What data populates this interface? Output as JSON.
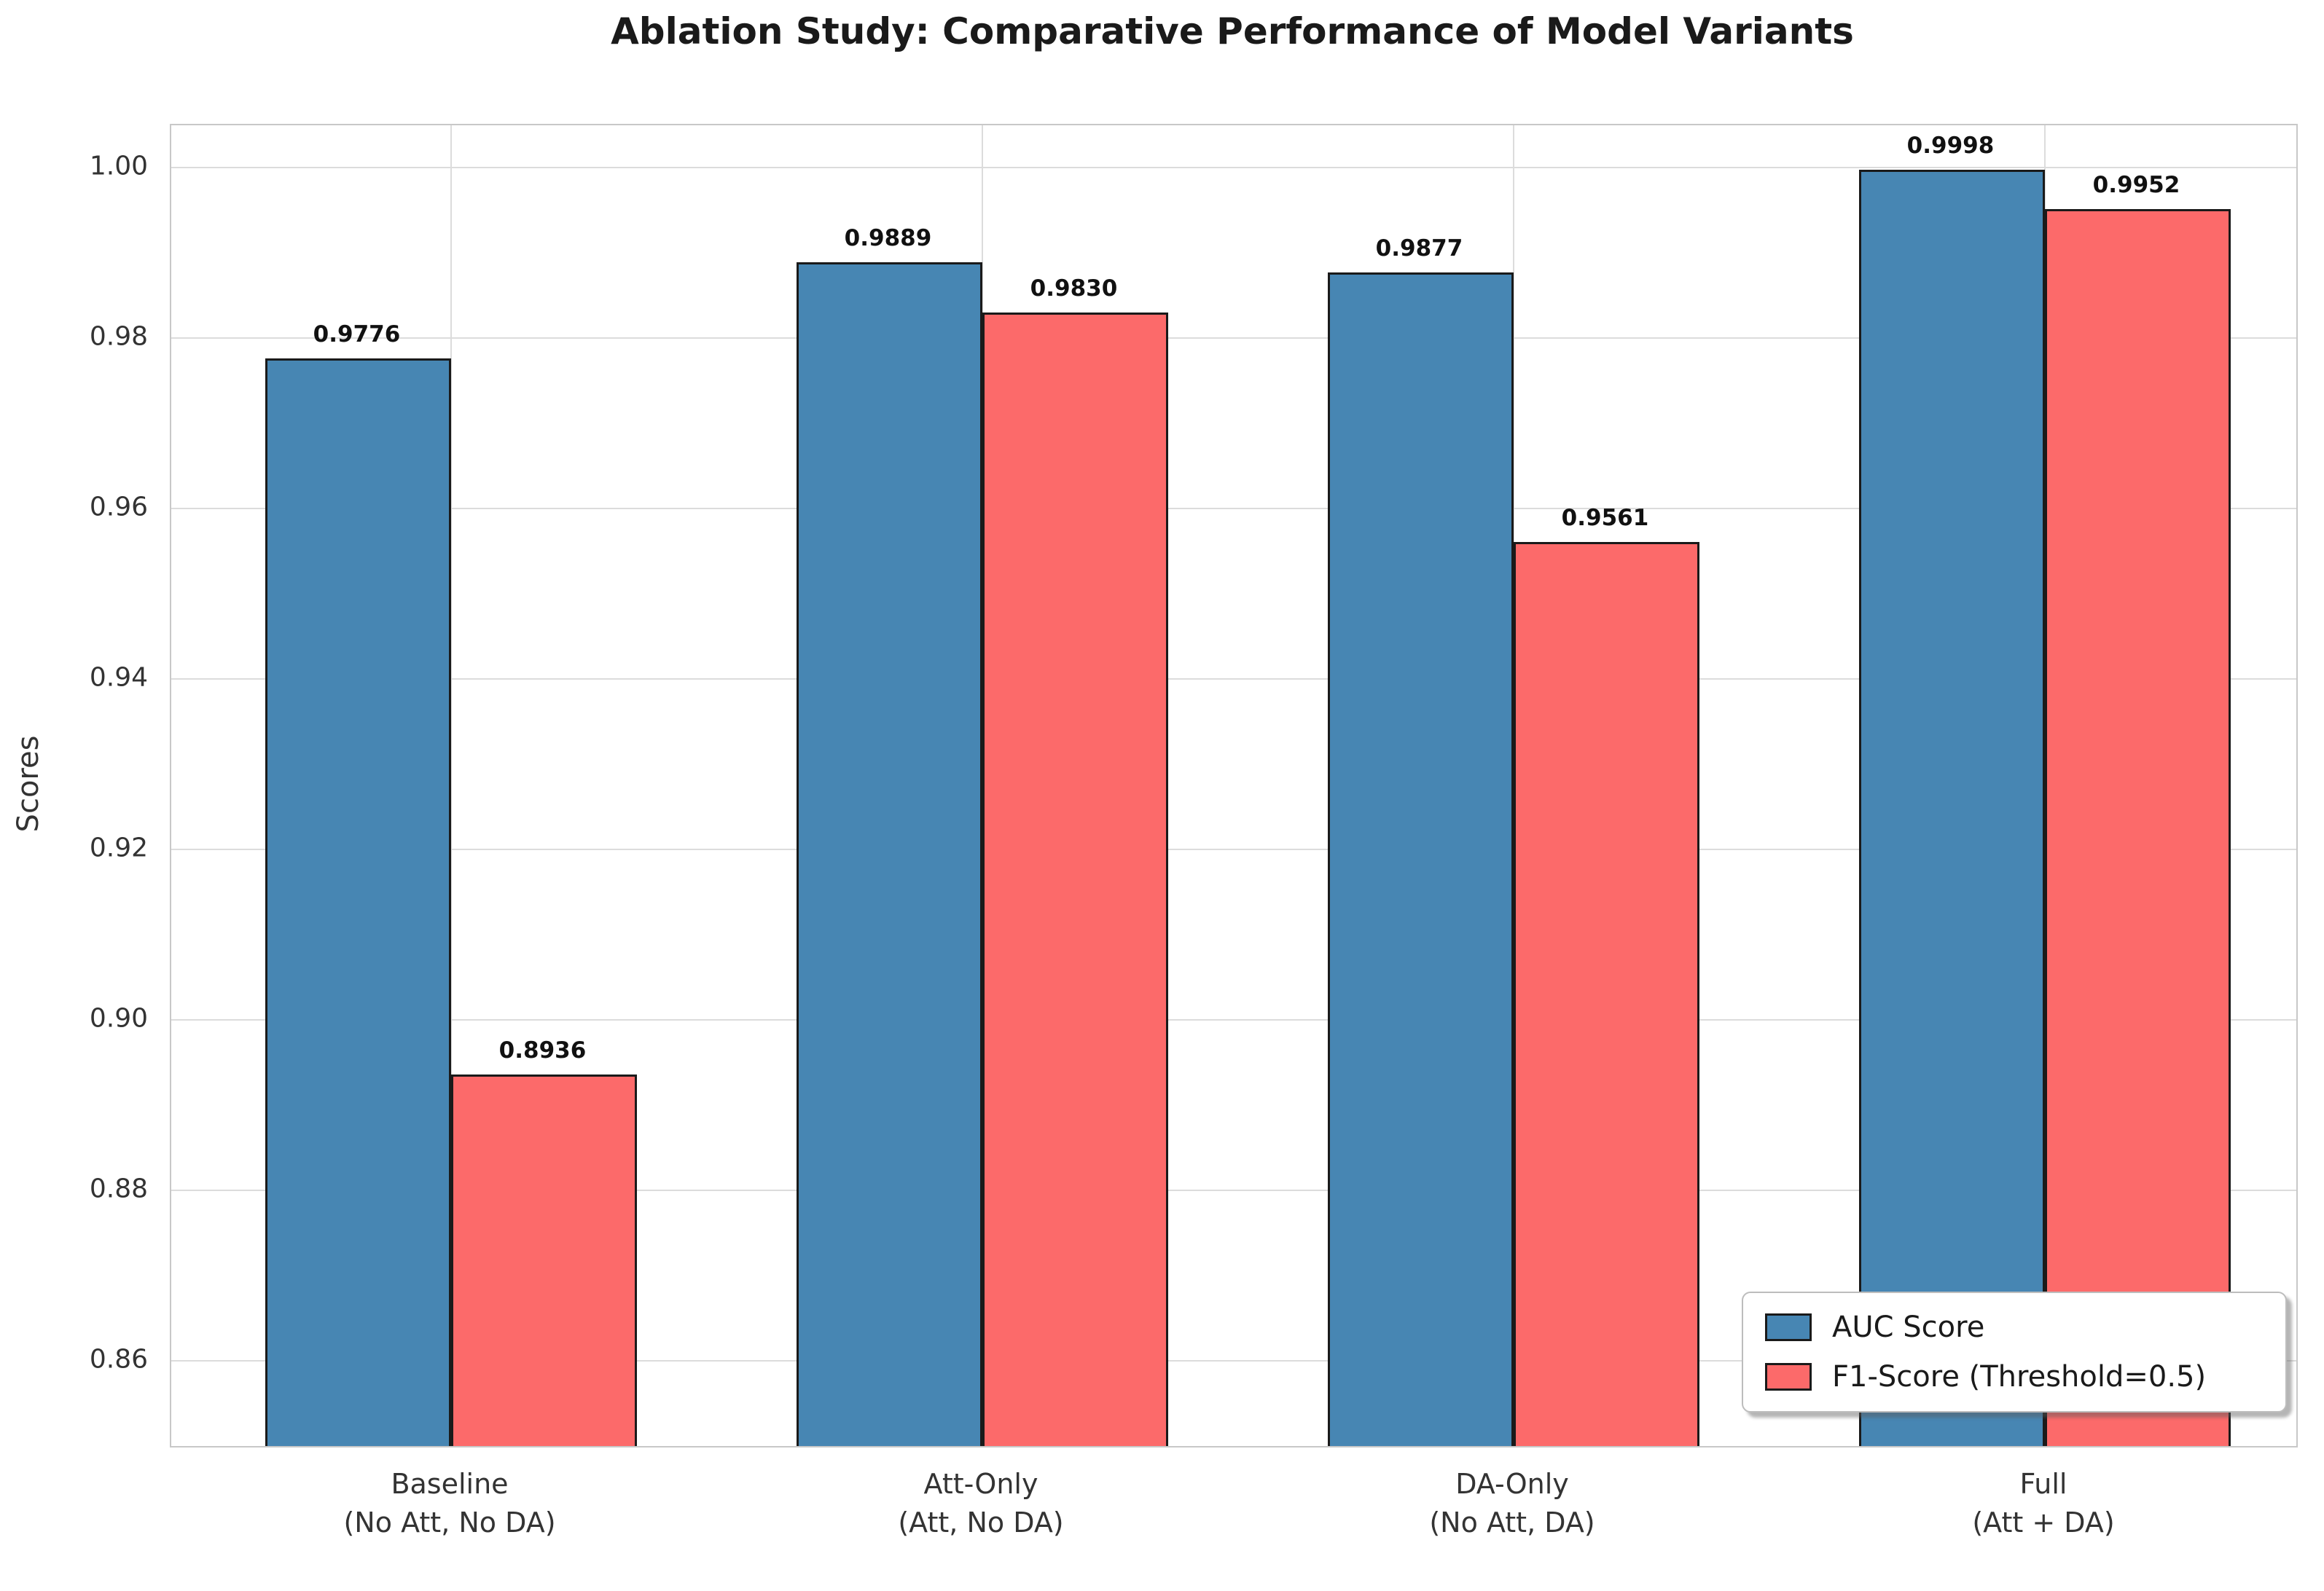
{
  "title": "Ablation Study: Comparative Performance of Model Variants",
  "chart_data": {
    "type": "bar",
    "title": "Ablation Study: Comparative Performance of Model Variants",
    "xlabel": "",
    "ylabel": "Scores",
    "categories": [
      "Baseline\n(No Att, No DA)",
      "Att-Only\n(Att, No DA)",
      "DA-Only\n(No Att, DA)",
      "Full\n(Att + DA)"
    ],
    "series": [
      {
        "name": "AUC Score",
        "color": "#4786B3",
        "values": [
          0.9776,
          0.9889,
          0.9877,
          0.9998
        ],
        "labels": [
          "0.9776",
          "0.9889",
          "0.9877",
          "0.9998"
        ]
      },
      {
        "name": "F1-Score (Threshold=0.5)",
        "color": "#FC6A6A",
        "values": [
          0.8936,
          0.983,
          0.9561,
          0.9952
        ],
        "labels": [
          "0.8936",
          "0.9830",
          "0.9561",
          "0.9952"
        ]
      }
    ],
    "bar_edge_color": "#1a1a1a",
    "bar_width": 0.35,
    "ylim": [
      0.85,
      1.005
    ],
    "yticks": {
      "values": [
        0.86,
        0.88,
        0.9,
        0.92,
        0.94,
        0.96,
        0.98,
        1.0
      ],
      "labels": [
        "0.86",
        "0.88",
        "0.90",
        "0.92",
        "0.94",
        "0.96",
        "0.98",
        "1.00"
      ]
    },
    "grid": true,
    "grid_color": "#dcdcdc",
    "legend_position": "lower right"
  }
}
